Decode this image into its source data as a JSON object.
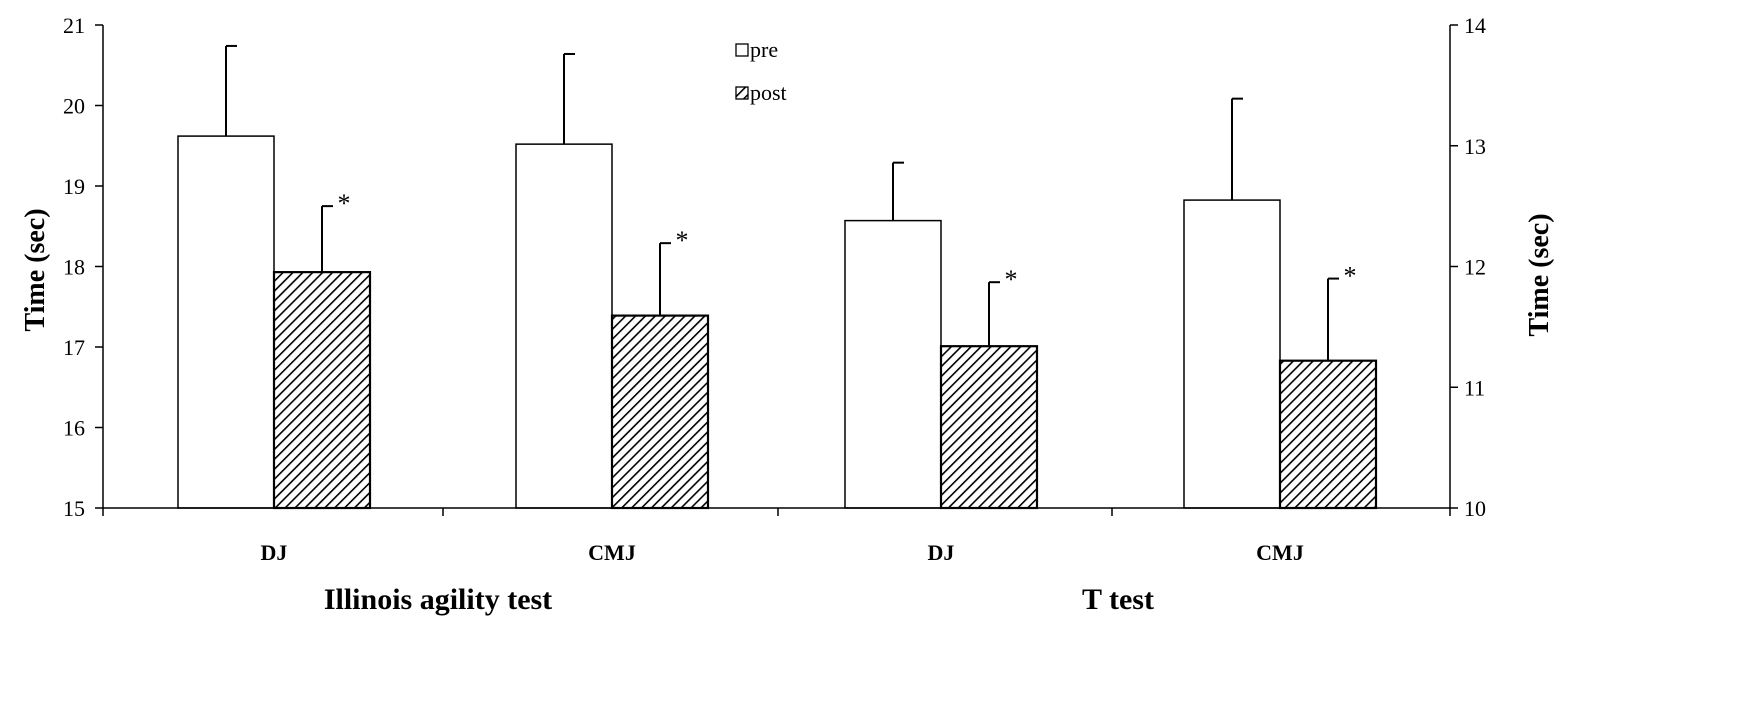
{
  "chart_data": {
    "type": "bar",
    "categories": [
      "DJ",
      "CMJ",
      "DJ",
      "CMJ"
    ],
    "groups": [
      {
        "label": "Illinois agility test",
        "categories": [
          0,
          1
        ],
        "axis": "left"
      },
      {
        "label": "T test",
        "categories": [
          2,
          3
        ],
        "axis": "right"
      }
    ],
    "series": [
      {
        "name": "pre",
        "fill": "white",
        "values": [
          19.62,
          19.52,
          12.38,
          12.55
        ],
        "errors": [
          1.12,
          1.12,
          0.48,
          0.84
        ],
        "significant": [
          false,
          false,
          false,
          false
        ]
      },
      {
        "name": "post",
        "fill": "hatched",
        "values": [
          17.93,
          17.39,
          11.34,
          11.22
        ],
        "errors": [
          0.82,
          0.9,
          0.53,
          0.68
        ],
        "significant": [
          true,
          true,
          true,
          true
        ]
      }
    ],
    "y_left": {
      "label": "Time (sec)",
      "ylim": [
        15,
        21
      ],
      "ticks": [
        15,
        16,
        17,
        18,
        19,
        20,
        21
      ]
    },
    "y_right": {
      "label": "Time (sec)",
      "ylim": [
        10,
        14
      ],
      "ticks": [
        10,
        11,
        12,
        13,
        14
      ]
    },
    "significance_marker": "*",
    "grid": false,
    "legend": {
      "position": "top-center",
      "entries": [
        "pre",
        "post"
      ]
    }
  }
}
